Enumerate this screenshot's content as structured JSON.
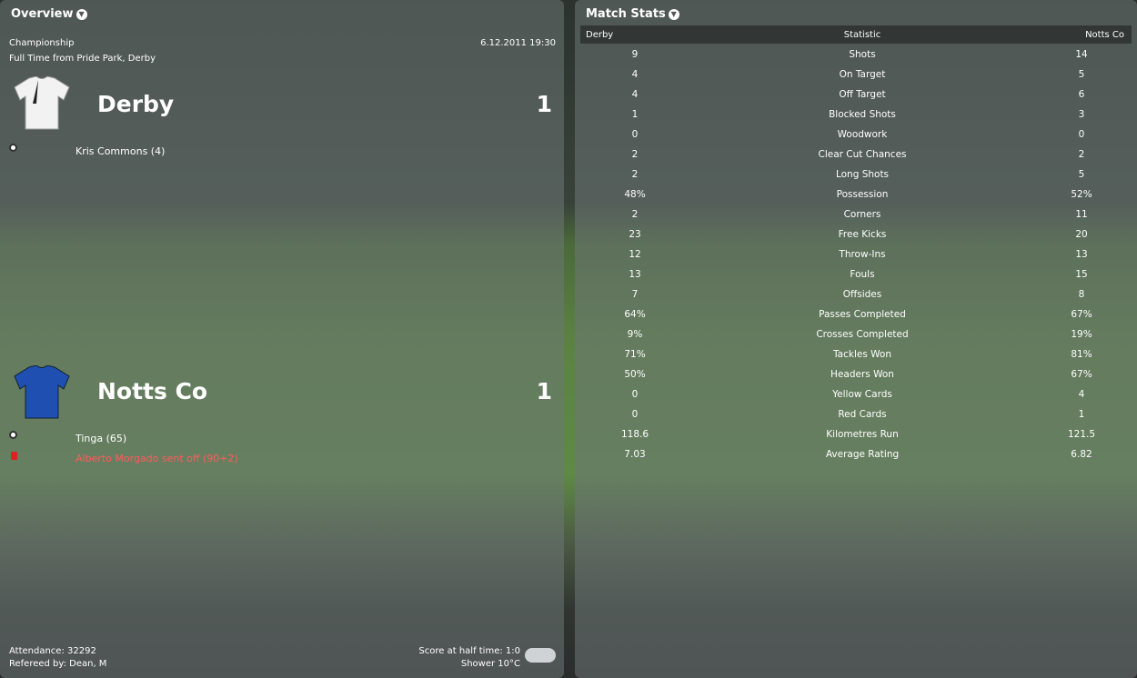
{
  "overview": {
    "title": "Overview",
    "competition": "Championship",
    "datetime": "6.12.2011 19:30",
    "status": "Full Time from Pride Park, Derby",
    "home": {
      "name": "Derby",
      "score": "1",
      "events": [
        {
          "type": "goal",
          "text": "Kris Commons (4)"
        }
      ]
    },
    "away": {
      "name": "Notts Co",
      "score": "1",
      "events": [
        {
          "type": "goal",
          "text": "Tinga (65)"
        },
        {
          "type": "red-card",
          "text": "Alberto Morgado sent off (90+2)"
        }
      ]
    },
    "attendance": "Attendance: 32292",
    "referee": "Refereed by: Dean, M",
    "half_time": "Score at half time: 1:0",
    "weather": "Shower 10°C",
    "weather_icon": "rain-cloud-icon"
  },
  "stats": {
    "title": "Match Stats",
    "headers": [
      "Derby",
      "Statistic",
      "Notts Co"
    ],
    "rows": [
      [
        "9",
        "Shots",
        "14"
      ],
      [
        "4",
        "On Target",
        "5"
      ],
      [
        "4",
        "Off Target",
        "6"
      ],
      [
        "1",
        "Blocked Shots",
        "3"
      ],
      [
        "0",
        "Woodwork",
        "0"
      ],
      [
        "2",
        "Clear Cut Chances",
        "2"
      ],
      [
        "2",
        "Long Shots",
        "5"
      ],
      [
        "48%",
        "Possession",
        "52%"
      ],
      [
        "2",
        "Corners",
        "11"
      ],
      [
        "23",
        "Free Kicks",
        "20"
      ],
      [
        "12",
        "Throw-Ins",
        "13"
      ],
      [
        "13",
        "Fouls",
        "15"
      ],
      [
        "7",
        "Offsides",
        "8"
      ],
      [
        "64%",
        "Passes Completed",
        "67%"
      ],
      [
        "9%",
        "Crosses Completed",
        "19%"
      ],
      [
        "71%",
        "Tackles Won",
        "81%"
      ],
      [
        "50%",
        "Headers Won",
        "67%"
      ],
      [
        "0",
        "Yellow Cards",
        "4"
      ],
      [
        "0",
        "Red Cards",
        "1"
      ],
      [
        "118.6",
        "Kilometres Run",
        "121.5"
      ],
      [
        "7.03",
        "Average Rating",
        "6.82"
      ]
    ]
  },
  "colors": {
    "home_shirt": "#f2f2f2",
    "away_shirt": "#1f4fb0",
    "red_text": "#ff5b5b"
  }
}
